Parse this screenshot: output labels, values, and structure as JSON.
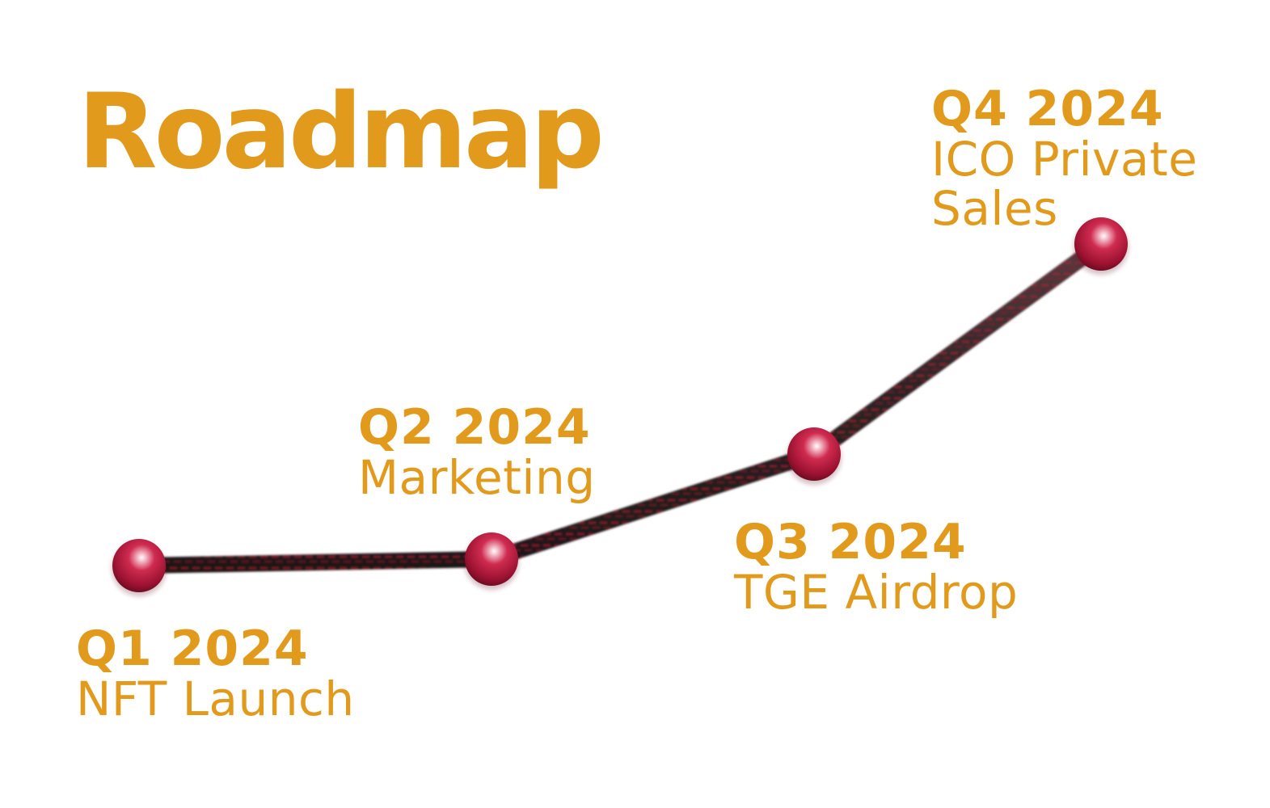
{
  "theme": {
    "accent": "#e19a1c",
    "node_color": "#c21f45",
    "track_dark": "#3a2a2e",
    "track_red": "#a31c2c"
  },
  "title": "Roadmap",
  "milestones": [
    {
      "quarter": "Q1 2024",
      "label": "NFT Launch"
    },
    {
      "quarter": "Q2 2024",
      "label": "Marketing"
    },
    {
      "quarter": "Q3 2024",
      "label": "TGE Airdrop"
    },
    {
      "quarter": "Q4 2024",
      "label": "ICO Private\nSales"
    }
  ]
}
